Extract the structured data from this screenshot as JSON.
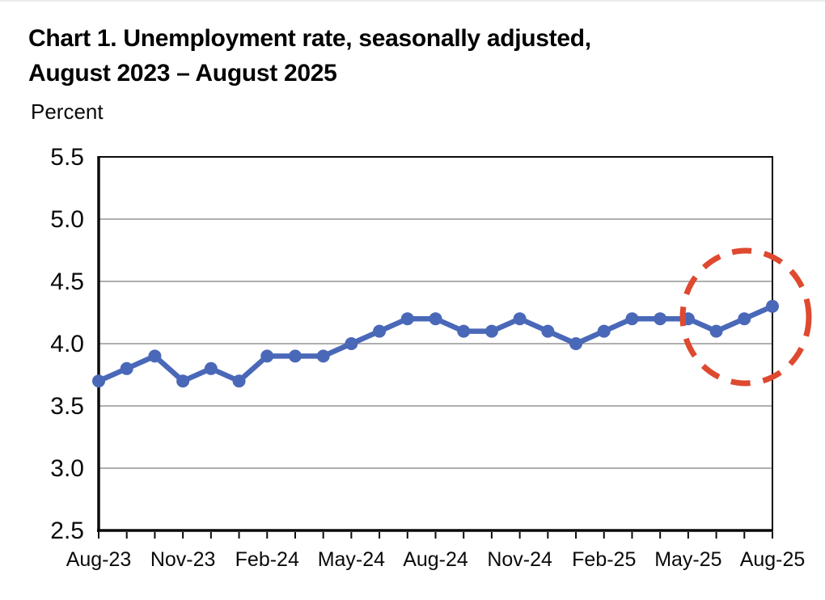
{
  "header": {
    "title_line1": "Chart 1. Unemployment rate, seasonally adjusted,",
    "title_line2": "August 2023 – August 2025",
    "axis_unit_label": "Percent"
  },
  "chart_data": {
    "type": "line",
    "title": "Chart 1. Unemployment rate, seasonally adjusted, August 2023 – August 2025",
    "ylabel": "Percent",
    "xlabel": "",
    "x": [
      "Aug-23",
      "Sep-23",
      "Oct-23",
      "Nov-23",
      "Dec-23",
      "Jan-24",
      "Feb-24",
      "Mar-24",
      "Apr-24",
      "May-24",
      "Jun-24",
      "Jul-24",
      "Aug-24",
      "Sep-24",
      "Oct-24",
      "Nov-24",
      "Dec-24",
      "Jan-25",
      "Feb-25",
      "Mar-25",
      "Apr-25",
      "May-25",
      "Jun-25",
      "Jul-25",
      "Aug-25"
    ],
    "series": [
      {
        "name": "Unemployment rate",
        "values": [
          3.7,
          3.8,
          3.9,
          3.7,
          3.8,
          3.7,
          3.9,
          3.9,
          3.9,
          4.0,
          4.1,
          4.2,
          4.2,
          4.1,
          4.1,
          4.2,
          4.1,
          4.0,
          4.1,
          4.2,
          4.2,
          4.2,
          4.1,
          4.2,
          4.3
        ]
      }
    ],
    "x_tick_labels": [
      "Aug-23",
      "Nov-23",
      "Feb-24",
      "May-24",
      "Aug-24",
      "Nov-24",
      "Feb-25",
      "May-25",
      "Aug-25"
    ],
    "x_tick_interval": 3,
    "y_ticks": [
      2.5,
      3.0,
      3.5,
      4.0,
      4.5,
      5.0,
      5.5
    ],
    "ylim": [
      2.5,
      5.5
    ],
    "grid": "horizontal",
    "legend": "none",
    "line_color": "#4A68B8",
    "marker": "circle",
    "grid_color": "#7f7f7f",
    "axis_color": "#0a0a0a",
    "annotation": {
      "shape": "dashed-circle",
      "color": "#DE4930",
      "highlights_months": [
        "Jun-25",
        "Jul-25",
        "Aug-25"
      ]
    }
  }
}
